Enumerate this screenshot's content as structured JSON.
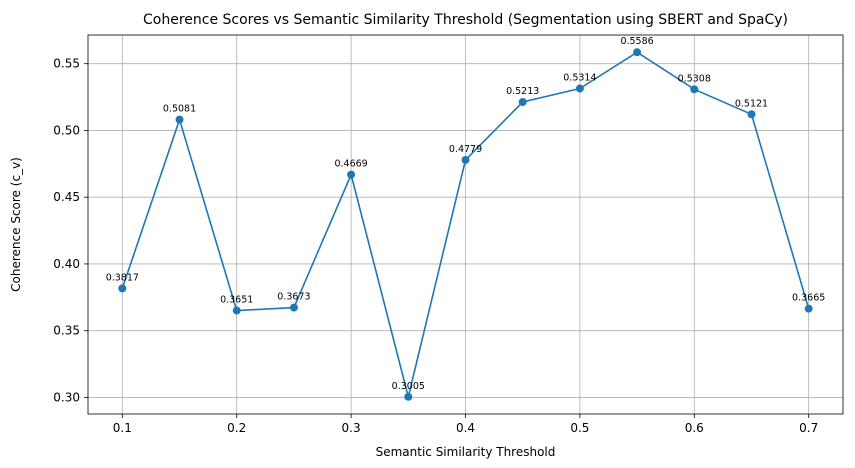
{
  "chart_data": {
    "type": "line",
    "title": "Coherence Scores vs Semantic Similarity Threshold (Segmentation using SBERT and SpaCy)",
    "xlabel": "Semantic Similarity Threshold",
    "ylabel": "Coherence Score (c_v)",
    "x": [
      0.1,
      0.15,
      0.2,
      0.25,
      0.3,
      0.35,
      0.4,
      0.45,
      0.5,
      0.55,
      0.6,
      0.65,
      0.7
    ],
    "series": [
      {
        "values": [
          0.3817,
          0.5081,
          0.3651,
          0.3673,
          0.4669,
          0.3005,
          0.4779,
          0.5213,
          0.5314,
          0.5586,
          0.5308,
          0.5121,
          0.3665
        ],
        "labels": [
          "0.3817",
          "0.5081",
          "0.3651",
          "0.3673",
          "0.4669",
          "0.3005",
          "0.4779",
          "0.5213",
          "0.5314",
          "0.5586",
          "0.5308",
          "0.5121",
          "0.3665"
        ],
        "color": "#1f77b4",
        "marker": "circle"
      }
    ],
    "xticks": [
      0.1,
      0.2,
      0.3,
      0.4,
      0.5,
      0.6,
      0.7
    ],
    "xtick_labels": [
      "0.1",
      "0.2",
      "0.3",
      "0.4",
      "0.5",
      "0.6",
      "0.7"
    ],
    "yticks": [
      0.3,
      0.35,
      0.4,
      0.45,
      0.5,
      0.55
    ],
    "ytick_labels": [
      "0.30",
      "0.35",
      "0.40",
      "0.45",
      "0.50",
      "0.55"
    ],
    "xlim": [
      0.07,
      0.73
    ],
    "ylim": [
      0.2876,
      0.5715
    ],
    "grid": true,
    "grid_color": "#b0b0b0"
  }
}
